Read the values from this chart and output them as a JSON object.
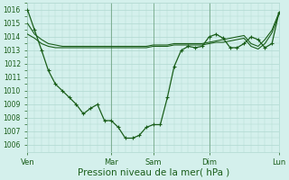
{
  "bg_color": "#d4f0ec",
  "grid_color": "#b0d8d0",
  "line_color": "#1a5e1a",
  "xlabel": "Pression niveau de la mer( hPa )",
  "xlabel_fontsize": 7.5,
  "ylim": [
    1005.5,
    1016.5
  ],
  "yticks": [
    1006,
    1007,
    1008,
    1009,
    1010,
    1011,
    1012,
    1013,
    1014,
    1015,
    1016
  ],
  "xtick_labels": [
    "Ven",
    "Mar",
    "Sam",
    "Dim",
    "Lun"
  ],
  "xtick_positions": [
    0,
    0.333,
    0.5,
    0.722,
    1.0
  ],
  "vline_positions": [
    0.0,
    0.333,
    0.5,
    0.722,
    1.0
  ],
  "series1_x": [
    0.0,
    0.028,
    0.056,
    0.083,
    0.111,
    0.139,
    0.167,
    0.194,
    0.222,
    0.25,
    0.278,
    0.306,
    0.333,
    0.361,
    0.389,
    0.417,
    0.444,
    0.472,
    0.5,
    0.528,
    0.556,
    0.583,
    0.611,
    0.639,
    0.667,
    0.694,
    0.722,
    0.75,
    0.778,
    0.806,
    0.833,
    0.861,
    0.889,
    0.917,
    0.944,
    0.972,
    1.0
  ],
  "series1": [
    1015.0,
    1014.2,
    1013.8,
    1013.5,
    1013.4,
    1013.3,
    1013.3,
    1013.3,
    1013.3,
    1013.3,
    1013.3,
    1013.3,
    1013.3,
    1013.3,
    1013.3,
    1013.3,
    1013.3,
    1013.3,
    1013.4,
    1013.4,
    1013.4,
    1013.5,
    1013.5,
    1013.5,
    1013.5,
    1013.5,
    1013.6,
    1013.7,
    1013.8,
    1013.9,
    1014.0,
    1014.1,
    1013.5,
    1013.3,
    1013.8,
    1014.5,
    1015.8
  ],
  "series2_x": [
    0.0,
    0.028,
    0.056,
    0.083,
    0.111,
    0.139,
    0.167,
    0.194,
    0.222,
    0.25,
    0.278,
    0.306,
    0.333,
    0.361,
    0.389,
    0.417,
    0.444,
    0.472,
    0.5,
    0.528,
    0.556,
    0.583,
    0.611,
    0.639,
    0.667,
    0.694,
    0.722,
    0.75,
    0.778,
    0.806,
    0.833,
    0.861,
    0.889,
    0.917,
    0.944,
    0.972,
    1.0
  ],
  "series2": [
    1014.2,
    1013.9,
    1013.5,
    1013.3,
    1013.2,
    1013.2,
    1013.2,
    1013.2,
    1013.2,
    1013.2,
    1013.2,
    1013.2,
    1013.2,
    1013.2,
    1013.2,
    1013.2,
    1013.2,
    1013.2,
    1013.3,
    1013.3,
    1013.3,
    1013.4,
    1013.4,
    1013.4,
    1013.4,
    1013.4,
    1013.5,
    1013.6,
    1013.6,
    1013.7,
    1013.8,
    1013.9,
    1013.3,
    1013.1,
    1013.5,
    1014.3,
    1015.7
  ],
  "series3_x": [
    0.0,
    0.028,
    0.056,
    0.083,
    0.111,
    0.139,
    0.167,
    0.194,
    0.222,
    0.25,
    0.278,
    0.306,
    0.333,
    0.361,
    0.389,
    0.417,
    0.444,
    0.472,
    0.5,
    0.528,
    0.556,
    0.583,
    0.611,
    0.639,
    0.667,
    0.694,
    0.722,
    0.75,
    0.778,
    0.806,
    0.833,
    0.861,
    0.889,
    0.917,
    0.944,
    0.972,
    1.0
  ],
  "series3": [
    1016.0,
    1014.5,
    1013.0,
    1011.5,
    1010.5,
    1010.0,
    1009.5,
    1009.0,
    1008.3,
    1008.7,
    1009.0,
    1007.8,
    1007.8,
    1007.3,
    1006.5,
    1006.5,
    1006.7,
    1007.3,
    1007.5,
    1007.5,
    1009.5,
    1011.8,
    1013.0,
    1013.3,
    1013.2,
    1013.3,
    1014.0,
    1014.2,
    1013.9,
    1013.2,
    1013.2,
    1013.5,
    1014.0,
    1013.8,
    1013.2,
    1013.5,
    1015.8
  ]
}
